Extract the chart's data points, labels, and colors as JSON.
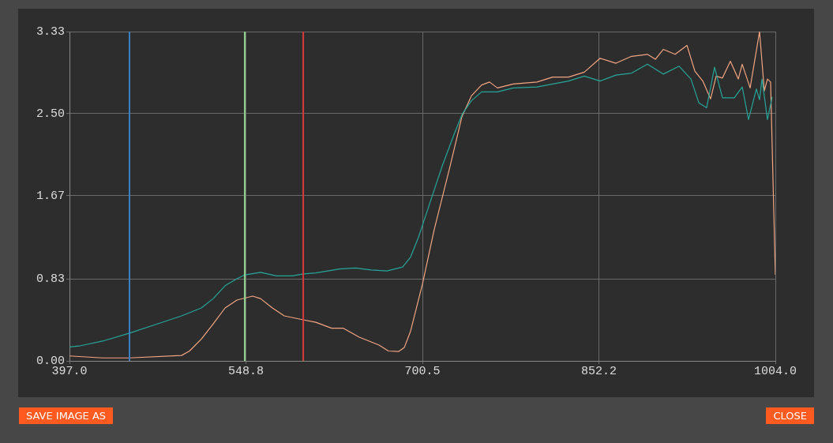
{
  "chart_data": {
    "type": "line",
    "xlim": [
      397,
      1004
    ],
    "xticks": [
      {
        "value": 397,
        "label": "397.0"
      },
      {
        "value": 548.8,
        "label": "548.8"
      },
      {
        "value": 700.5,
        "label": "700.5"
      },
      {
        "value": 852.2,
        "label": "852.2"
      },
      {
        "value": 1004,
        "label": "1004.0"
      }
    ],
    "ylim": [
      0,
      3.33
    ],
    "yticks": [
      {
        "value": 0,
        "label": "0.00"
      },
      {
        "value": 0.83,
        "label": "0.83"
      },
      {
        "value": 1.67,
        "label": "1.67"
      },
      {
        "value": 2.5,
        "label": "2.50"
      },
      {
        "value": 3.33,
        "label": "3.33"
      }
    ],
    "grid": true,
    "legend": false,
    "marker": "none",
    "line_style": "solid",
    "series": [
      {
        "color": "#26a69a",
        "x": [
          397,
          405.1,
          425.5,
          448.6,
          473,
          493.4,
          510.4,
          520.6,
          530.8,
          541,
          547.7,
          561.3,
          574.9,
          588.5,
          598,
          608.8,
          629.2,
          642.8,
          656.4,
          670,
          683.5,
          690.3,
          697.1,
          703.9,
          710.7,
          717.5,
          727.7,
          734.5,
          742.6,
          751.4,
          765,
          778.6,
          799,
          812.5,
          826.1,
          839.7,
          853.3,
          866.9,
          880.4,
          894,
          907.6,
          921.2,
          931.4,
          938.2,
          944.9,
          951.7,
          958.5,
          968.7,
          975.5,
          980.9,
          987.7,
          990.4,
          992.5,
          997.2,
          1001.3
        ],
        "values": [
          0.14,
          0.15,
          0.2,
          0.28,
          0.375,
          0.455,
          0.535,
          0.63,
          0.76,
          0.83,
          0.87,
          0.895,
          0.86,
          0.86,
          0.88,
          0.89,
          0.93,
          0.94,
          0.92,
          0.91,
          0.95,
          1.05,
          1.25,
          1.49,
          1.73,
          1.97,
          2.29,
          2.49,
          2.63,
          2.72,
          2.72,
          2.76,
          2.77,
          2.8,
          2.83,
          2.88,
          2.83,
          2.89,
          2.91,
          3.0,
          2.9,
          2.98,
          2.85,
          2.61,
          2.56,
          2.97,
          2.66,
          2.66,
          2.77,
          2.44,
          2.75,
          2.64,
          2.85,
          2.44,
          2.67
        ]
      },
      {
        "color": "#f4a582",
        "x": [
          397,
          425.5,
          448.6,
          493.4,
          500.2,
          510.4,
          520.6,
          530.8,
          541,
          554.5,
          561.3,
          571.5,
          581.7,
          598,
          608.8,
          622.4,
          632.6,
          646.2,
          663.2,
          671.3,
          680.1,
          684.9,
          690.3,
          700.5,
          710.7,
          724.3,
          734.5,
          742.6,
          751.4,
          758.2,
          765,
          778.6,
          799,
          812.5,
          826.1,
          839.7,
          853.3,
          866.9,
          880.4,
          887.2,
          894,
          900.8,
          907.6,
          917.8,
          928,
          934.8,
          941.6,
          948.3,
          953.1,
          958.5,
          965.3,
          972.1,
          975.5,
          982.3,
          990.4,
          994.5,
          997.2,
          999.9,
          1004
        ],
        "values": [
          0.05,
          0.03,
          0.03,
          0.055,
          0.1,
          0.22,
          0.375,
          0.535,
          0.615,
          0.655,
          0.63,
          0.535,
          0.455,
          0.415,
          0.39,
          0.33,
          0.33,
          0.24,
          0.16,
          0.1,
          0.095,
          0.135,
          0.3,
          0.775,
          1.33,
          1.97,
          2.47,
          2.68,
          2.79,
          2.82,
          2.76,
          2.8,
          2.82,
          2.87,
          2.87,
          2.92,
          3.06,
          3.01,
          3.08,
          3.09,
          3.1,
          3.05,
          3.15,
          3.1,
          3.19,
          2.93,
          2.83,
          2.65,
          2.88,
          2.86,
          3.03,
          2.85,
          3.0,
          2.76,
          3.33,
          2.73,
          2.85,
          2.82,
          0.87
        ]
      }
    ],
    "ref_lines": [
      {
        "axis": "x",
        "value": 448.6,
        "color": "#3a7fc4"
      },
      {
        "axis": "x",
        "value": 547.7,
        "color": "#8fd18f"
      },
      {
        "axis": "x",
        "value": 598,
        "color": "#d63a3a"
      }
    ],
    "annotations": [
      "SAVE IMAGE AS",
      "CLOSE"
    ]
  }
}
